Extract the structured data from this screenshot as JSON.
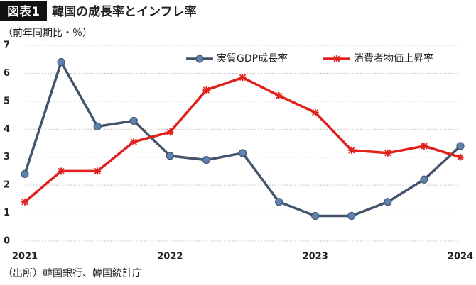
{
  "chart_data": {
    "type": "line",
    "badge": "図表1",
    "title": "韓国の成長率とインフレ率",
    "y_label": "（前年同期比・％）",
    "source": "（出所）韓国銀行、韓国統計庁",
    "categories": [
      "2021",
      null,
      null,
      null,
      "2022",
      null,
      null,
      null,
      "2023",
      null,
      null,
      null,
      "2024"
    ],
    "series": [
      {
        "name": "実質GDP成長率",
        "color": "#44546a",
        "marker_color": "#5b84b1",
        "marker": "circle",
        "values": [
          2.4,
          6.4,
          4.1,
          4.3,
          3.05,
          2.9,
          3.15,
          1.4,
          0.9,
          0.9,
          1.4,
          2.2,
          3.4
        ]
      },
      {
        "name": "消費者物価上昇率",
        "color": "#e0201b",
        "marker_color": "#e0201b",
        "marker": "asterisk",
        "values": [
          1.4,
          2.5,
          2.5,
          3.55,
          3.9,
          5.4,
          5.85,
          5.2,
          4.6,
          3.25,
          3.15,
          3.4,
          3.0
        ]
      }
    ],
    "ylim": [
      0,
      7
    ],
    "yticks": [
      0,
      1,
      2,
      3,
      4,
      5,
      6,
      7
    ],
    "grid": true,
    "legend": "top-right"
  }
}
